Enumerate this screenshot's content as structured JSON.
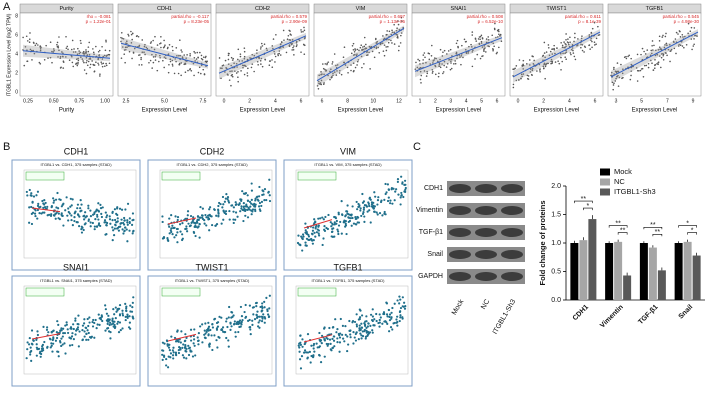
{
  "panel_labels": [
    "A",
    "B",
    "C"
  ],
  "panel_a": {
    "y_label": "ITGBL1 Expression Level (log2 TPM)",
    "y_ticks": [
      "0",
      "2",
      "4",
      "6",
      "8"
    ],
    "plots": [
      {
        "title": "Purity",
        "stat1": "rho = -0.081",
        "stat2": "p = 1.22e-01",
        "x_label": "Purity",
        "x_ticks": [
          "0.25",
          "0.50",
          "0.75",
          "1.00"
        ]
      },
      {
        "title": "CDH1",
        "stat1": "partial.rho = -0.117",
        "stat2": "p = 8.23e-05",
        "x_label": "Expression Level",
        "x_ticks": [
          "2.5",
          "5.0",
          "7.5"
        ]
      },
      {
        "title": "CDH2",
        "stat1": "partial.rho = 0.579",
        "stat2": "p = 2.90e-09",
        "x_label": "Expression Level",
        "x_ticks": [
          "0",
          "2",
          "4",
          "6"
        ]
      },
      {
        "title": "VIM",
        "stat1": "partial.rho = 0.697",
        "stat2": "p = 1.13e-05",
        "x_label": "Expression Level",
        "x_ticks": [
          "6",
          "8",
          "10",
          "12"
        ]
      },
      {
        "title": "SNAI1",
        "stat1": "partial.rho = 0.508",
        "stat2": "p = 6.52e-10",
        "x_label": "Expression Level",
        "x_ticks": [
          "1",
          "2",
          "3",
          "4",
          "5",
          "6"
        ]
      },
      {
        "title": "TWIST1",
        "stat1": "partial.rho = 0.611",
        "stat2": "p = 8.1e-39",
        "x_label": "Expression Level",
        "x_ticks": [
          "0",
          "2",
          "4",
          "6"
        ]
      },
      {
        "title": "TGFB1",
        "stat1": "partial.rho = 0.545",
        "stat2": "p = 4.98e-30",
        "x_label": "Expression Level",
        "x_ticks": [
          "3",
          "5",
          "7",
          "9"
        ]
      }
    ]
  },
  "panel_b": {
    "plots": [
      {
        "title": "CDH1",
        "subtitle": "ITGBL1 vs. CDH1, 375 samples (STAD)"
      },
      {
        "title": "CDH2",
        "subtitle": "ITGBL1 vs. CDH2, 375 samples (STAD)"
      },
      {
        "title": "VIM",
        "subtitle": "ITGBL1 vs. VIM, 375 samples (STAD)"
      },
      {
        "title": "SNAI1",
        "subtitle": "ITGBL1 vs. SNAI1, 375 samples (STAD)"
      },
      {
        "title": "TWIST1",
        "subtitle": "ITGBL1 vs. TWIST1, 375 samples (STAD)"
      },
      {
        "title": "TGFB1",
        "subtitle": "ITGBL1 vs. TGFB1, 375 samples (STAD)"
      }
    ]
  },
  "blot": {
    "rows": [
      "CDH1",
      "Vimentin",
      "TGF-β1",
      "Snail",
      "GAPDH"
    ],
    "lanes": [
      "Mock",
      "NC",
      "ITGBL1-Sh3"
    ]
  },
  "chart_data": {
    "type": "bar",
    "y_label": "Fold change of proteins",
    "categories": [
      "CDH1",
      "Vimentin",
      "TGF-β1",
      "Snail"
    ],
    "series": [
      {
        "name": "Mock",
        "color": "#000000",
        "values": [
          1.0,
          1.0,
          1.0,
          1.0
        ],
        "errors": [
          0.04,
          0.03,
          0.03,
          0.03
        ]
      },
      {
        "name": "NC",
        "color": "#a6a6a6",
        "values": [
          1.05,
          1.02,
          0.92,
          1.02
        ],
        "errors": [
          0.05,
          0.04,
          0.04,
          0.04
        ]
      },
      {
        "name": "ITGBL1-Sh3",
        "color": "#595959",
        "values": [
          1.42,
          0.43,
          0.52,
          0.78
        ],
        "errors": [
          0.07,
          0.05,
          0.05,
          0.05
        ]
      }
    ],
    "significance": [
      [
        "**",
        "*"
      ],
      [
        "**",
        "**"
      ],
      [
        "**",
        "**"
      ],
      [
        "*",
        "*"
      ]
    ],
    "ylim": [
      0,
      2
    ],
    "yticks": [
      {
        "value": 0,
        "label": "0.0"
      },
      {
        "value": 0.5,
        "label": "0.5"
      },
      {
        "value": 1,
        "label": "1.0"
      },
      {
        "value": 1.5,
        "label": "1.5"
      },
      {
        "value": 2,
        "label": "2.0"
      }
    ]
  }
}
